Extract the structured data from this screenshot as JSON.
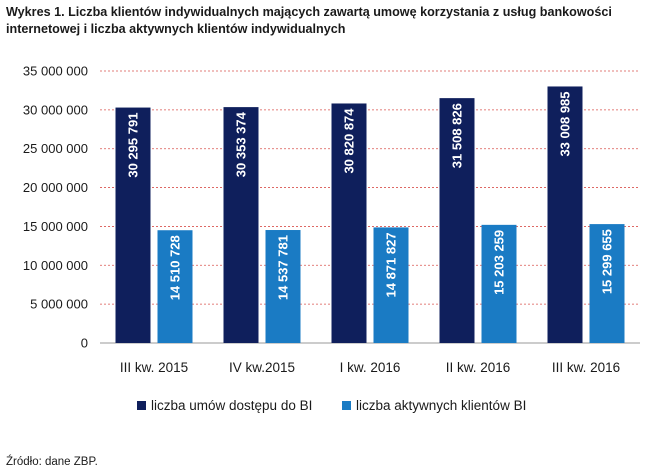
{
  "title": "Wykres 1. Liczba klientów indywidualnych mających zawartą umowę korzystania z usług bankowości internetowej i liczba aktywnych klientów indywidualnych",
  "source": "Źródło: dane ZBP.",
  "chart_data": {
    "type": "bar",
    "title": "Wykres 1. Liczba klientów indywidualnych mających zawartą umowę korzystania z usług bankowości internetowej i liczba aktywnych klientów indywidualnych",
    "categories": [
      "III kw. 2015",
      "IV kw.2015",
      "I kw. 2016",
      "II kw. 2016",
      "III kw. 2016"
    ],
    "series": [
      {
        "name": "liczba umów dostępu do BI",
        "color": "#0f1f5c",
        "values": [
          30295791,
          30353374,
          30820874,
          31508826,
          33008985
        ],
        "labels": [
          "30 295 791",
          "30 353 374",
          "30 820 874",
          "31 508 826",
          "33 008 985"
        ]
      },
      {
        "name": "liczba aktywnych klientów BI",
        "color": "#1a7bc4",
        "values": [
          14510728,
          14537781,
          14871827,
          15203259,
          15299655
        ],
        "labels": [
          "14 510 728",
          "14 537 781",
          "14 871 827",
          "15 203 259",
          "15 299 655"
        ]
      }
    ],
    "ylim": [
      0,
      35000000
    ],
    "yticks": [
      0,
      5000000,
      10000000,
      15000000,
      20000000,
      25000000,
      30000000,
      35000000
    ],
    "ytick_labels": [
      "0",
      "5 000 000",
      "10 000 000",
      "15 000 000",
      "20 000 000",
      "25 000 000",
      "30 000 000",
      "35 000 000"
    ],
    "grid": true,
    "grid_color": "#d9534f",
    "legend_position": "bottom",
    "xlabel": "",
    "ylabel": ""
  }
}
